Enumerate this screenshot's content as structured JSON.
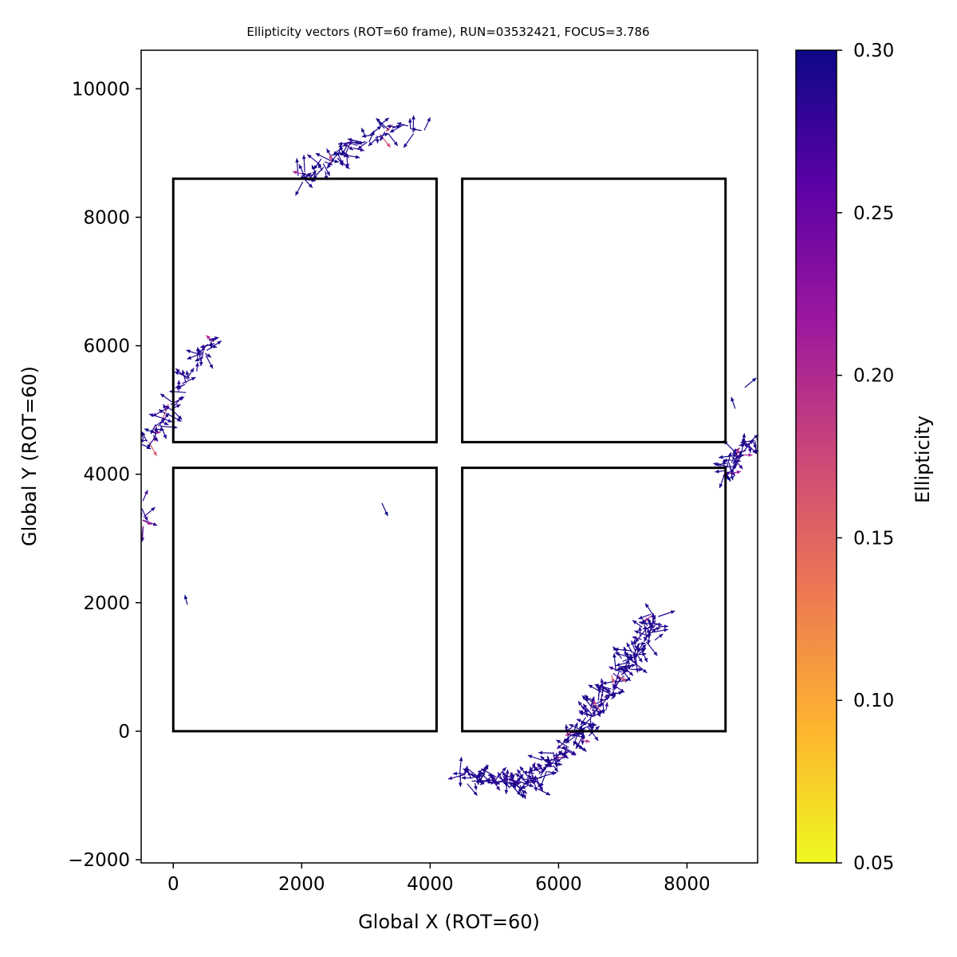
{
  "chart_data": {
    "type": "quiver",
    "title": "Ellipticity vectors (ROT=60 frame), RUN=03532421, FOCUS=3.786",
    "xlabel": "Global X (ROT=60)",
    "ylabel": "Global Y (ROT=60)",
    "xlim": [
      -500,
      9100
    ],
    "ylim": [
      -2050,
      10600
    ],
    "xticks": [
      0,
      2000,
      4000,
      6000,
      8000
    ],
    "yticks": [
      -2000,
      0,
      2000,
      4000,
      6000,
      8000,
      10000
    ],
    "grid": false,
    "colorbar": {
      "label": "Ellipticity",
      "colormap": "plasma_r",
      "range": [
        0.05,
        0.3
      ],
      "ticks": [
        0.05,
        0.1,
        0.15,
        0.2,
        0.25,
        0.3
      ],
      "colors": [
        "#f0f921",
        "#fdb42f",
        "#ed7953",
        "#cc4778",
        "#9c179e",
        "#5c01a6",
        "#0d0887"
      ]
    },
    "ccd_boxes": [
      {
        "x0": 0,
        "y0": 4500,
        "x1": 4100,
        "y1": 8600
      },
      {
        "x0": 4500,
        "y0": 4500,
        "x1": 8600,
        "y1": 8600
      },
      {
        "x0": 0,
        "y0": 0,
        "x1": 4100,
        "y1": 4100
      },
      {
        "x0": 4500,
        "y0": 0,
        "x1": 8600,
        "y1": 4100
      }
    ],
    "vector_clusters": [
      {
        "region": "top-arc",
        "points": [
          [
            1950,
            8600
          ],
          [
            2300,
            8780
          ],
          [
            2600,
            9000
          ],
          [
            3000,
            9200
          ],
          [
            3500,
            9420
          ],
          [
            3900,
            9350
          ]
        ],
        "count": 70,
        "spread": 130,
        "e_mean": 0.29
      },
      {
        "region": "left-arc",
        "points": [
          [
            -500,
            4400
          ],
          [
            -250,
            4700
          ],
          [
            0,
            5100
          ],
          [
            250,
            5500
          ],
          [
            600,
            6080
          ]
        ],
        "count": 60,
        "spread": 110,
        "e_mean": 0.29
      },
      {
        "region": "left-edge",
        "points": [
          [
            -480,
            2950
          ],
          [
            -470,
            3400
          ],
          [
            -460,
            3750
          ]
        ],
        "count": 10,
        "spread": 50,
        "e_mean": 0.28
      },
      {
        "region": "right-edge",
        "points": [
          [
            8550,
            4000
          ],
          [
            8800,
            4300
          ],
          [
            9100,
            4550
          ]
        ],
        "count": 45,
        "spread": 110,
        "e_mean": 0.29
      },
      {
        "region": "bottom-right-arc",
        "points": [
          [
            4500,
            -700
          ],
          [
            5500,
            -800
          ],
          [
            6100,
            -300
          ],
          [
            6500,
            250
          ],
          [
            7000,
            1000
          ],
          [
            7550,
            1750
          ]
        ],
        "count": 260,
        "spread": 170,
        "e_mean": 0.29
      }
    ],
    "isolated_vectors": [
      {
        "x": 3250,
        "y": 3550,
        "dx": 90,
        "dy": -200
      },
      {
        "x": 220,
        "y": 1970,
        "dx": -40,
        "dy": 150
      },
      {
        "x": 8900,
        "y": 5350,
        "dx": 180,
        "dy": 150
      },
      {
        "x": 8750,
        "y": 5020,
        "dx": -60,
        "dy": 180
      }
    ]
  }
}
